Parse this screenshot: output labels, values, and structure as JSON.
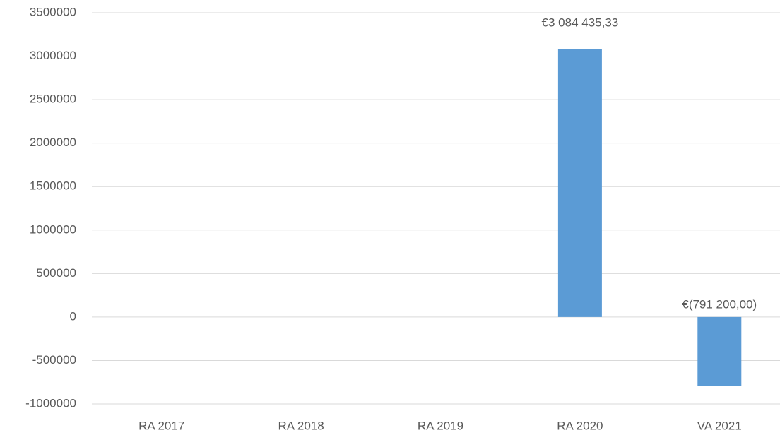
{
  "chart_data": {
    "type": "bar",
    "categories": [
      "RA 2017",
      "RA 2018",
      "RA 2019",
      "RA 2020",
      "VA 2021"
    ],
    "values": [
      null,
      null,
      null,
      3084435.33,
      -791200
    ],
    "value_labels": [
      null,
      null,
      null,
      "€3 084 435,33",
      "€(791 200,00)"
    ],
    "color": "#5b9bd5",
    "ylim": [
      -1000000,
      3500000
    ],
    "yticks": [
      -1000000,
      -500000,
      0,
      500000,
      1000000,
      1500000,
      2000000,
      2500000,
      3000000,
      3500000
    ],
    "grid": true
  }
}
